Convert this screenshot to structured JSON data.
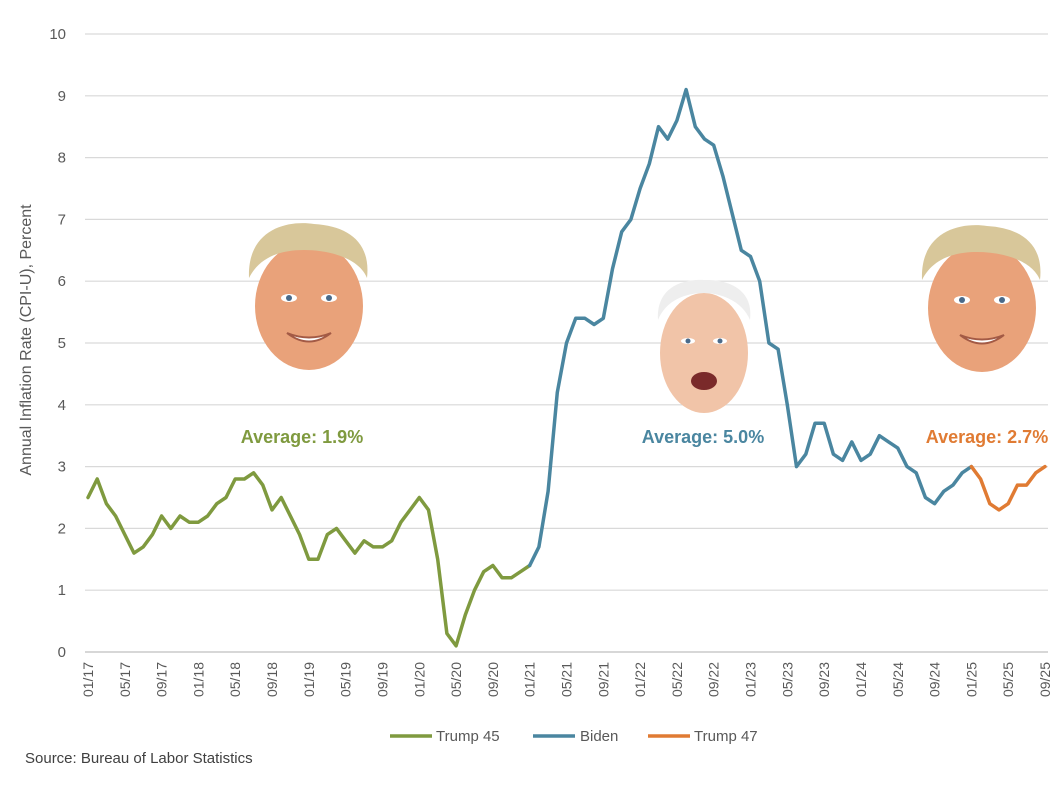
{
  "chart_data": {
    "type": "line",
    "ylabel": "Annual Inflation Rate (CPI-U), Percent",
    "ylim": [
      0,
      10
    ],
    "yticks": [
      0,
      1,
      2,
      3,
      4,
      5,
      6,
      7,
      8,
      9,
      10
    ],
    "xticks": [
      "01/17",
      "05/17",
      "09/17",
      "01/18",
      "05/18",
      "09/18",
      "01/19",
      "05/19",
      "09/19",
      "01/20",
      "05/20",
      "09/20",
      "01/21",
      "05/21",
      "09/21",
      "01/22",
      "05/22",
      "09/22",
      "01/23",
      "05/23",
      "09/23",
      "01/24",
      "05/24",
      "09/24",
      "01/25",
      "05/25",
      "09/25"
    ],
    "grid": "horizontal",
    "legend_position": "bottom",
    "x_start": "01/17",
    "series": [
      {
        "name": "Trump 45",
        "color": "#7f9a3f",
        "start": "01/17",
        "values": [
          2.5,
          2.8,
          2.4,
          2.2,
          1.9,
          1.6,
          1.7,
          1.9,
          2.2,
          2.0,
          2.2,
          2.1,
          2.1,
          2.2,
          2.4,
          2.5,
          2.8,
          2.8,
          2.9,
          2.7,
          2.3,
          2.5,
          2.2,
          1.9,
          1.5,
          1.5,
          1.9,
          2.0,
          1.8,
          1.6,
          1.8,
          1.7,
          1.7,
          1.8,
          2.1,
          2.3,
          2.5,
          2.3,
          1.5,
          0.3,
          0.1,
          0.6,
          1.0,
          1.3,
          1.4,
          1.2,
          1.2,
          1.3,
          1.4
        ]
      },
      {
        "name": "Biden",
        "color": "#4a86a0",
        "start": "01/21",
        "values": [
          1.4,
          1.7,
          2.6,
          4.2,
          5.0,
          5.4,
          5.4,
          5.3,
          5.4,
          6.2,
          6.8,
          7.0,
          7.5,
          7.9,
          8.5,
          8.3,
          8.6,
          9.1,
          8.5,
          8.3,
          8.2,
          7.7,
          7.1,
          6.5,
          6.4,
          6.0,
          5.0,
          4.9,
          4.0,
          3.0,
          3.2,
          3.7,
          3.7,
          3.2,
          3.1,
          3.4,
          3.1,
          3.2,
          3.5,
          3.4,
          3.3,
          3.0,
          2.9,
          2.5,
          2.4,
          2.6,
          2.7,
          2.9,
          3.0
        ]
      },
      {
        "name": "Trump 47",
        "color": "#e07b33",
        "start": "01/25",
        "values": [
          3.0,
          2.8,
          2.4,
          2.3,
          2.4,
          2.7,
          2.7,
          2.9,
          3.0
        ]
      }
    ],
    "annotations": [
      {
        "text": "Average: 1.9%",
        "color": "#7f9a3f"
      },
      {
        "text": "Average: 5.0%",
        "color": "#4a86a0"
      },
      {
        "text": "Average: 2.7%",
        "color": "#e07b33"
      }
    ]
  },
  "source": "Source: Bureau of Labor Statistics",
  "images": [
    {
      "name": "trump-face-1"
    },
    {
      "name": "biden-face"
    },
    {
      "name": "trump-face-2"
    }
  ]
}
